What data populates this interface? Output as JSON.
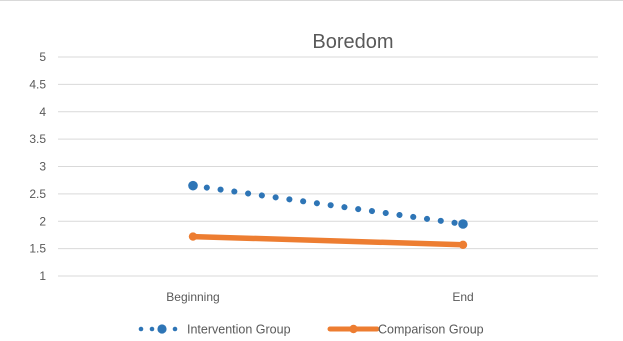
{
  "chart_data": {
    "type": "line",
    "title": "Boredom",
    "xlabel": "",
    "ylabel": "",
    "categories": [
      "Beginning",
      "End"
    ],
    "ylim": [
      1,
      5
    ],
    "yticks": [
      "1",
      "1.5",
      "2",
      "2.5",
      "3",
      "3.5",
      "4",
      "4.5",
      "5"
    ],
    "grid": true,
    "legend_position": "bottom",
    "series": [
      {
        "name": "Intervention Group",
        "values": [
          2.65,
          1.95
        ],
        "color": "#2e75b6",
        "style": "dotted-with-markers"
      },
      {
        "name": "Comparison Group",
        "values": [
          1.72,
          1.57
        ],
        "color": "#ed7d31",
        "style": "solid-with-markers"
      }
    ]
  }
}
